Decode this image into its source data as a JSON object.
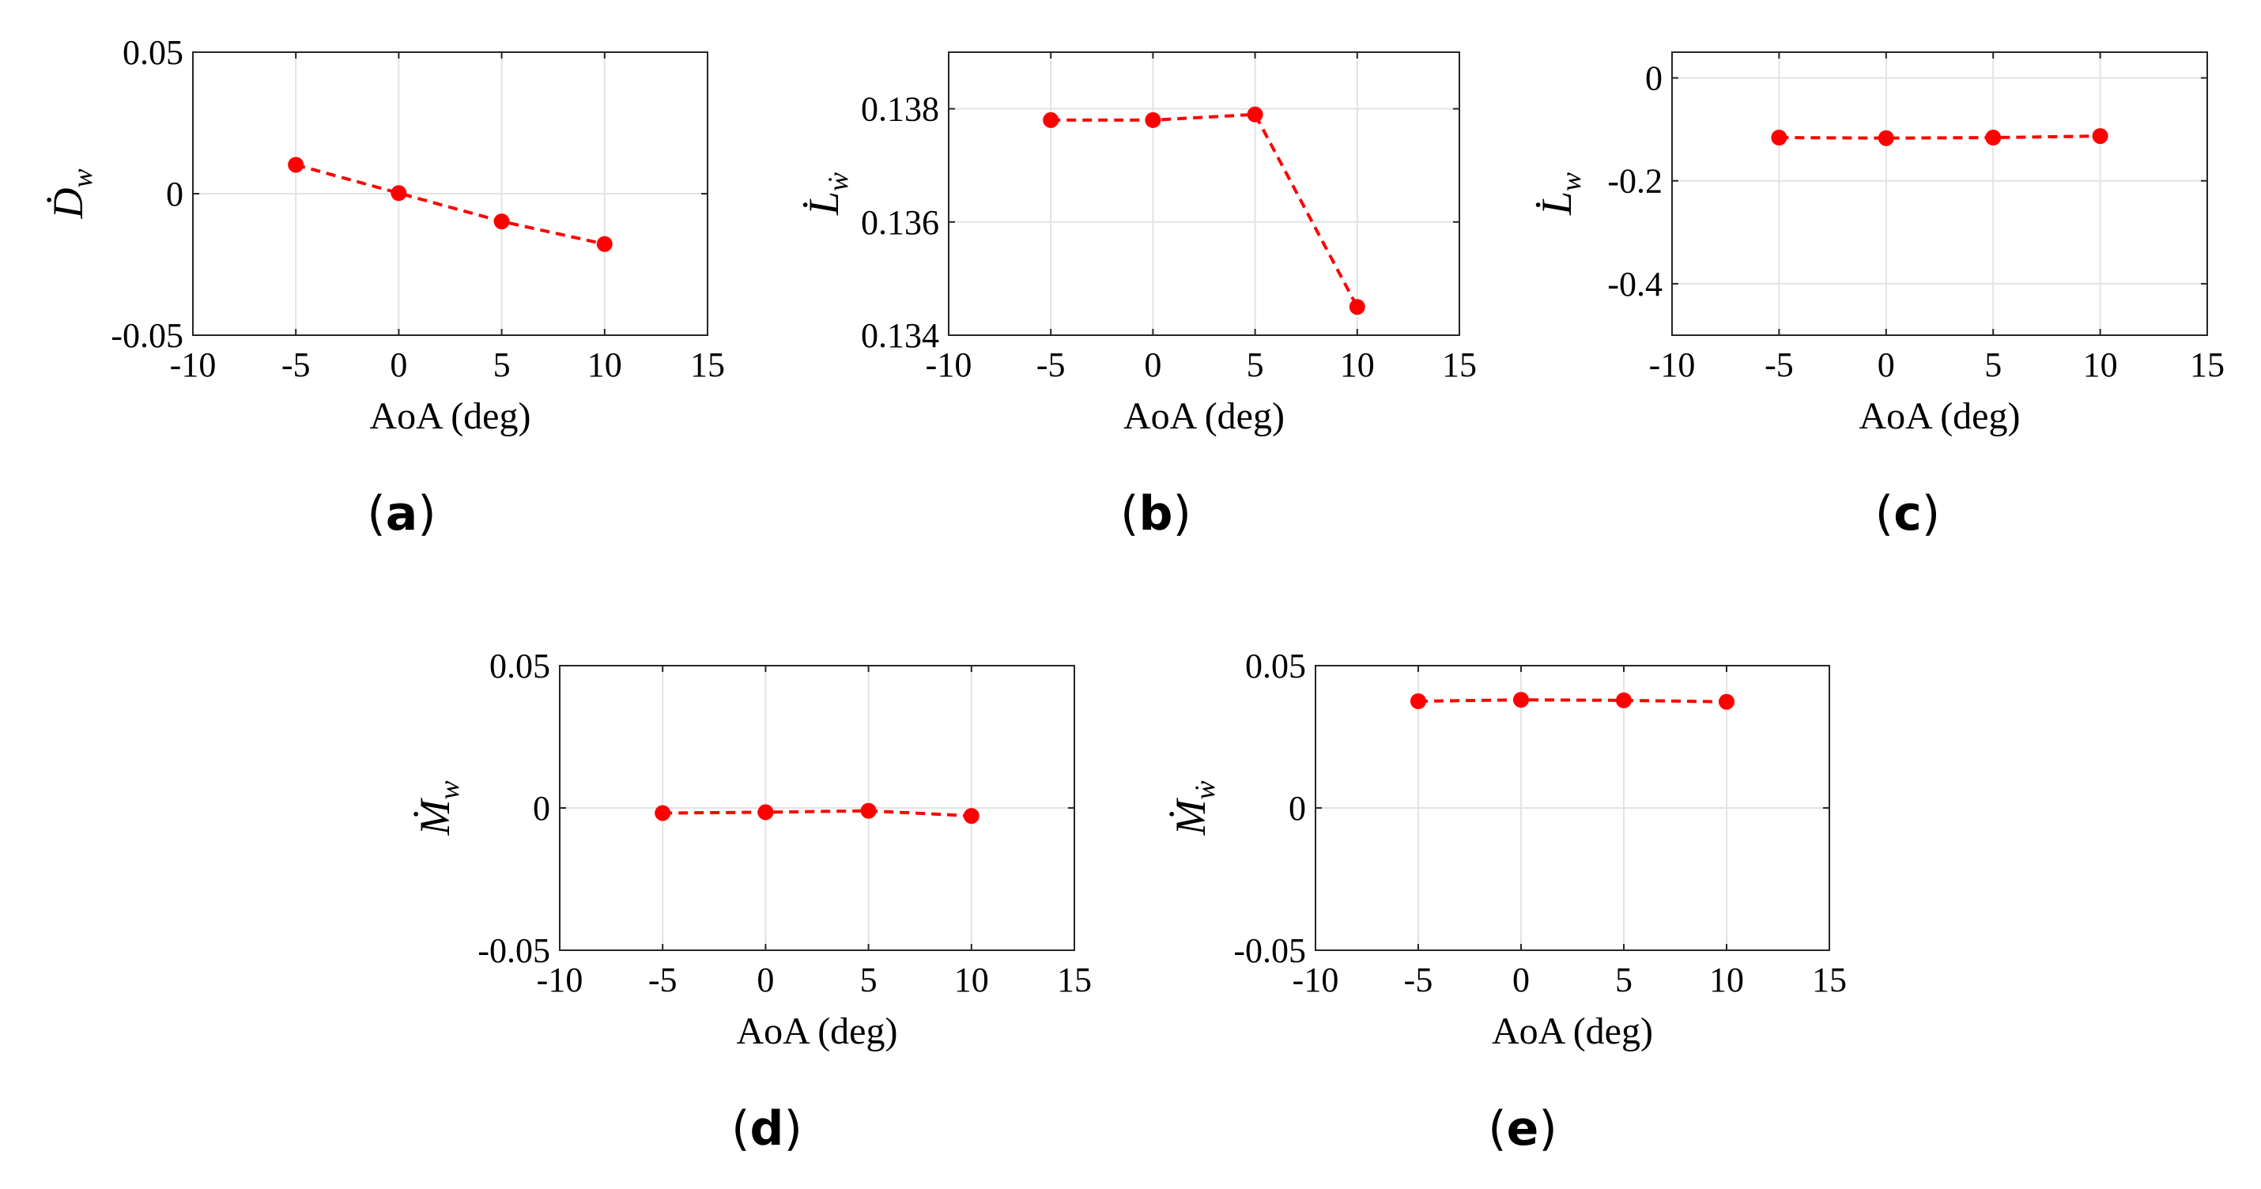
{
  "chart_data": [
    {
      "id": "a",
      "type": "line",
      "panel_label": "a",
      "ylabel_main": "Ḋ",
      "ylabel_sub": "w",
      "xlabel": "AoA (deg)",
      "xlim": [
        -10,
        15
      ],
      "ylim": [
        -0.05,
        0.05
      ],
      "xticks": [
        -10,
        -5,
        0,
        5,
        10,
        15
      ],
      "xtick_labels": [
        "-10",
        "-5",
        "0",
        "5",
        "10",
        "15"
      ],
      "yticks": [
        -0.05,
        0,
        0.05
      ],
      "ytick_labels": [
        "-0.05",
        "0",
        "0.05"
      ],
      "grid": true,
      "series": [
        {
          "name": "Ḋw",
          "color": "#ff0000",
          "x": [
            -5,
            0,
            5,
            10
          ],
          "y": [
            0.0102,
            0.0002,
            -0.0098,
            -0.0178
          ]
        }
      ]
    },
    {
      "id": "b",
      "type": "line",
      "panel_label": "b",
      "ylabel_main": "L̇",
      "ylabel_sub": "ẇ",
      "xlabel": "AoA (deg)",
      "xlim": [
        -10,
        15
      ],
      "ylim": [
        0.134,
        0.139
      ],
      "xticks": [
        -10,
        -5,
        0,
        5,
        10,
        15
      ],
      "xtick_labels": [
        "-10",
        "-5",
        "0",
        "5",
        "10",
        "15"
      ],
      "yticks": [
        0.134,
        0.136,
        0.138
      ],
      "ytick_labels": [
        "0.134",
        "0.136",
        "0.138"
      ],
      "grid": true,
      "series": [
        {
          "name": "L̇ẇ",
          "color": "#ff0000",
          "x": [
            -5,
            0,
            5,
            10
          ],
          "y": [
            0.1378,
            0.1378,
            0.1379,
            0.1345
          ]
        }
      ]
    },
    {
      "id": "c",
      "type": "line",
      "panel_label": "c",
      "ylabel_main": "L̇",
      "ylabel_sub": "w",
      "xlabel": "AoA (deg)",
      "xlim": [
        -10,
        15
      ],
      "ylim": [
        -0.5,
        0.05
      ],
      "xticks": [
        -10,
        -5,
        0,
        5,
        10,
        15
      ],
      "xtick_labels": [
        "-10",
        "-5",
        "0",
        "5",
        "10",
        "15"
      ],
      "yticks": [
        -0.4,
        -0.2,
        0
      ],
      "ytick_labels": [
        "-0.4",
        "-0.2",
        "0"
      ],
      "grid": true,
      "series": [
        {
          "name": "L̇w",
          "color": "#ff0000",
          "x": [
            -5,
            0,
            5,
            10
          ],
          "y": [
            -0.116,
            -0.117,
            -0.116,
            -0.113
          ]
        }
      ]
    },
    {
      "id": "d",
      "type": "line",
      "panel_label": "d",
      "ylabel_main": "Ṁ",
      "ylabel_sub": "w",
      "xlabel": "AoA (deg)",
      "xlim": [
        -10,
        15
      ],
      "ylim": [
        -0.05,
        0.05
      ],
      "xticks": [
        -10,
        -5,
        0,
        5,
        10,
        15
      ],
      "xtick_labels": [
        "-10",
        "-5",
        "0",
        "5",
        "10",
        "15"
      ],
      "yticks": [
        -0.05,
        0,
        0.05
      ],
      "ytick_labels": [
        "-0.05",
        "0",
        "0.05"
      ],
      "grid": true,
      "series": [
        {
          "name": "Ṁw",
          "color": "#ff0000",
          "x": [
            -5,
            0,
            5,
            10
          ],
          "y": [
            -0.0018,
            -0.0015,
            -0.001,
            -0.0028
          ]
        }
      ]
    },
    {
      "id": "e",
      "type": "line",
      "panel_label": "e",
      "ylabel_main": "Ṁ",
      "ylabel_sub": "ẇ",
      "xlabel": "AoA (deg)",
      "xlim": [
        -10,
        15
      ],
      "ylim": [
        -0.05,
        0.05
      ],
      "xticks": [
        -10,
        -5,
        0,
        5,
        10,
        15
      ],
      "xtick_labels": [
        "-10",
        "-5",
        "0",
        "5",
        "10",
        "15"
      ],
      "yticks": [
        -0.05,
        0,
        0.05
      ],
      "ytick_labels": [
        "-0.05",
        "0",
        "0.05"
      ],
      "grid": true,
      "series": [
        {
          "name": "Ṁẇ",
          "color": "#ff0000",
          "x": [
            -5,
            0,
            5,
            10
          ],
          "y": [
            0.0375,
            0.038,
            0.0378,
            0.0373
          ]
        }
      ]
    }
  ]
}
